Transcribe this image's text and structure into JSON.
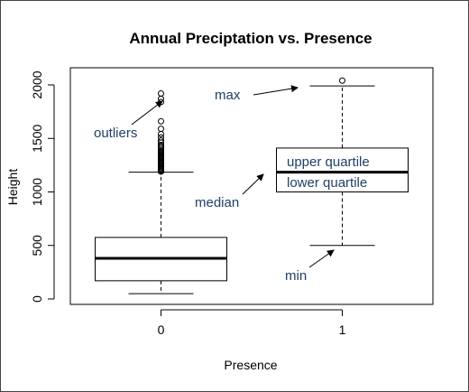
{
  "chart_data": {
    "type": "box",
    "title": "Annual Preciptation vs. Presence",
    "xlabel": "Presence",
    "ylabel": "Height",
    "xlim": [
      0.5,
      2.5
    ],
    "ylim": [
      0,
      2000
    ],
    "categories": [
      "0",
      "1"
    ],
    "yticks": [
      0,
      500,
      1000,
      1500,
      2000
    ],
    "boxes": [
      {
        "category": "0",
        "whisker_low": 50,
        "q1": 170,
        "median": 380,
        "q3": 575,
        "whisker_high": 1185,
        "outliers": [
          1190,
          1200,
          1210,
          1220,
          1230,
          1240,
          1250,
          1260,
          1270,
          1280,
          1290,
          1300,
          1310,
          1320,
          1330,
          1340,
          1350,
          1360,
          1370,
          1380,
          1395,
          1410,
          1425,
          1440,
          1460,
          1480,
          1510,
          1540,
          1590,
          1660,
          1840,
          1870,
          1920
        ]
      },
      {
        "category": "1",
        "whisker_low": 500,
        "q1": 1000,
        "median": 1185,
        "q3": 1410,
        "whisker_high": 1990,
        "outliers": [
          2040
        ]
      }
    ],
    "annotations": [
      {
        "id": "outliers",
        "text": "outliers"
      },
      {
        "id": "max",
        "text": "max"
      },
      {
        "id": "upper-quartile",
        "text": "upper quartile"
      },
      {
        "id": "median",
        "text": "median"
      },
      {
        "id": "lower-quartile",
        "text": "lower quartile"
      },
      {
        "id": "min",
        "text": "min"
      }
    ],
    "annotation_color": "#1f3f66",
    "grid": false
  }
}
